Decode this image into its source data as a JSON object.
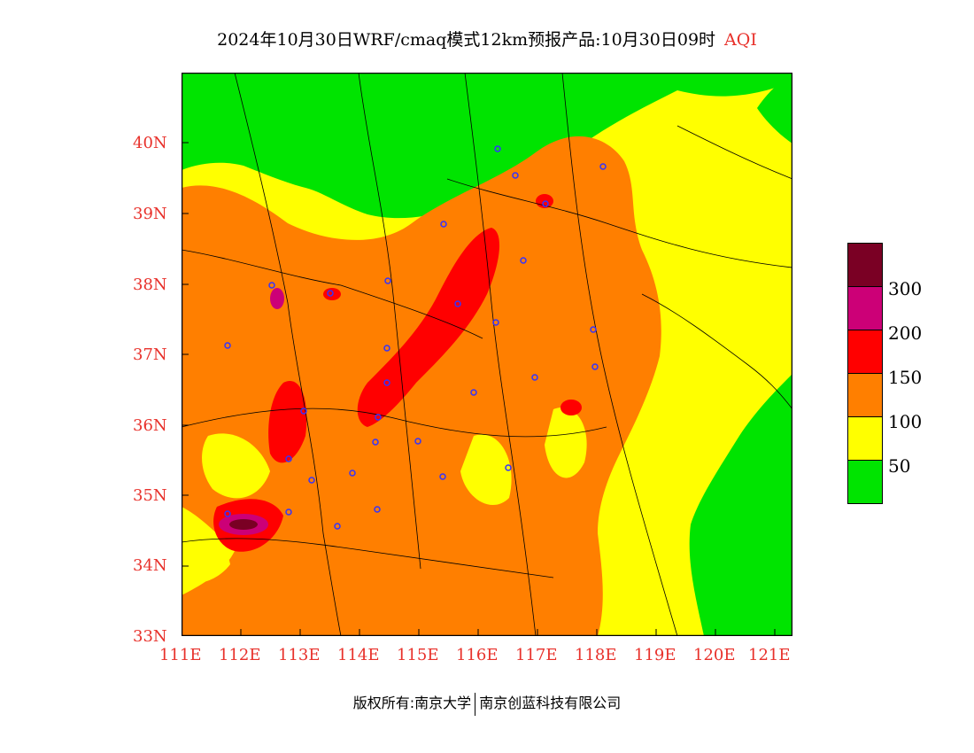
{
  "title": {
    "main": "2024年10月30日WRF/cmaq模式12km预报产品:10月30日09时",
    "product": "AQI"
  },
  "axes": {
    "x_ticks": [
      "111E",
      "112E",
      "113E",
      "114E",
      "115E",
      "116E",
      "117E",
      "118E",
      "119E",
      "120E",
      "121E"
    ],
    "y_ticks": [
      "40N",
      "39N",
      "38N",
      "37N",
      "36N",
      "35N",
      "34N",
      "33N"
    ]
  },
  "legend": {
    "labels": [
      "300",
      "200",
      "150",
      "100",
      "50"
    ],
    "colors": [
      "#7a0024",
      "#cc0077",
      "#ff0000",
      "#ff7f00",
      "#ffff00",
      "#00e400"
    ]
  },
  "footer": {
    "left": "版权所有:南京大学",
    "right": "南京创蓝科技有限公司"
  },
  "colors": {
    "good": "#00e400",
    "moderate": "#ffff00",
    "usg": "#ff7f00",
    "unhealthy": "#ff0000",
    "very_unhealthy": "#cc0077",
    "hazardous": "#7a0024",
    "axis_text": "#e8312b",
    "station": "#3333ff"
  }
}
